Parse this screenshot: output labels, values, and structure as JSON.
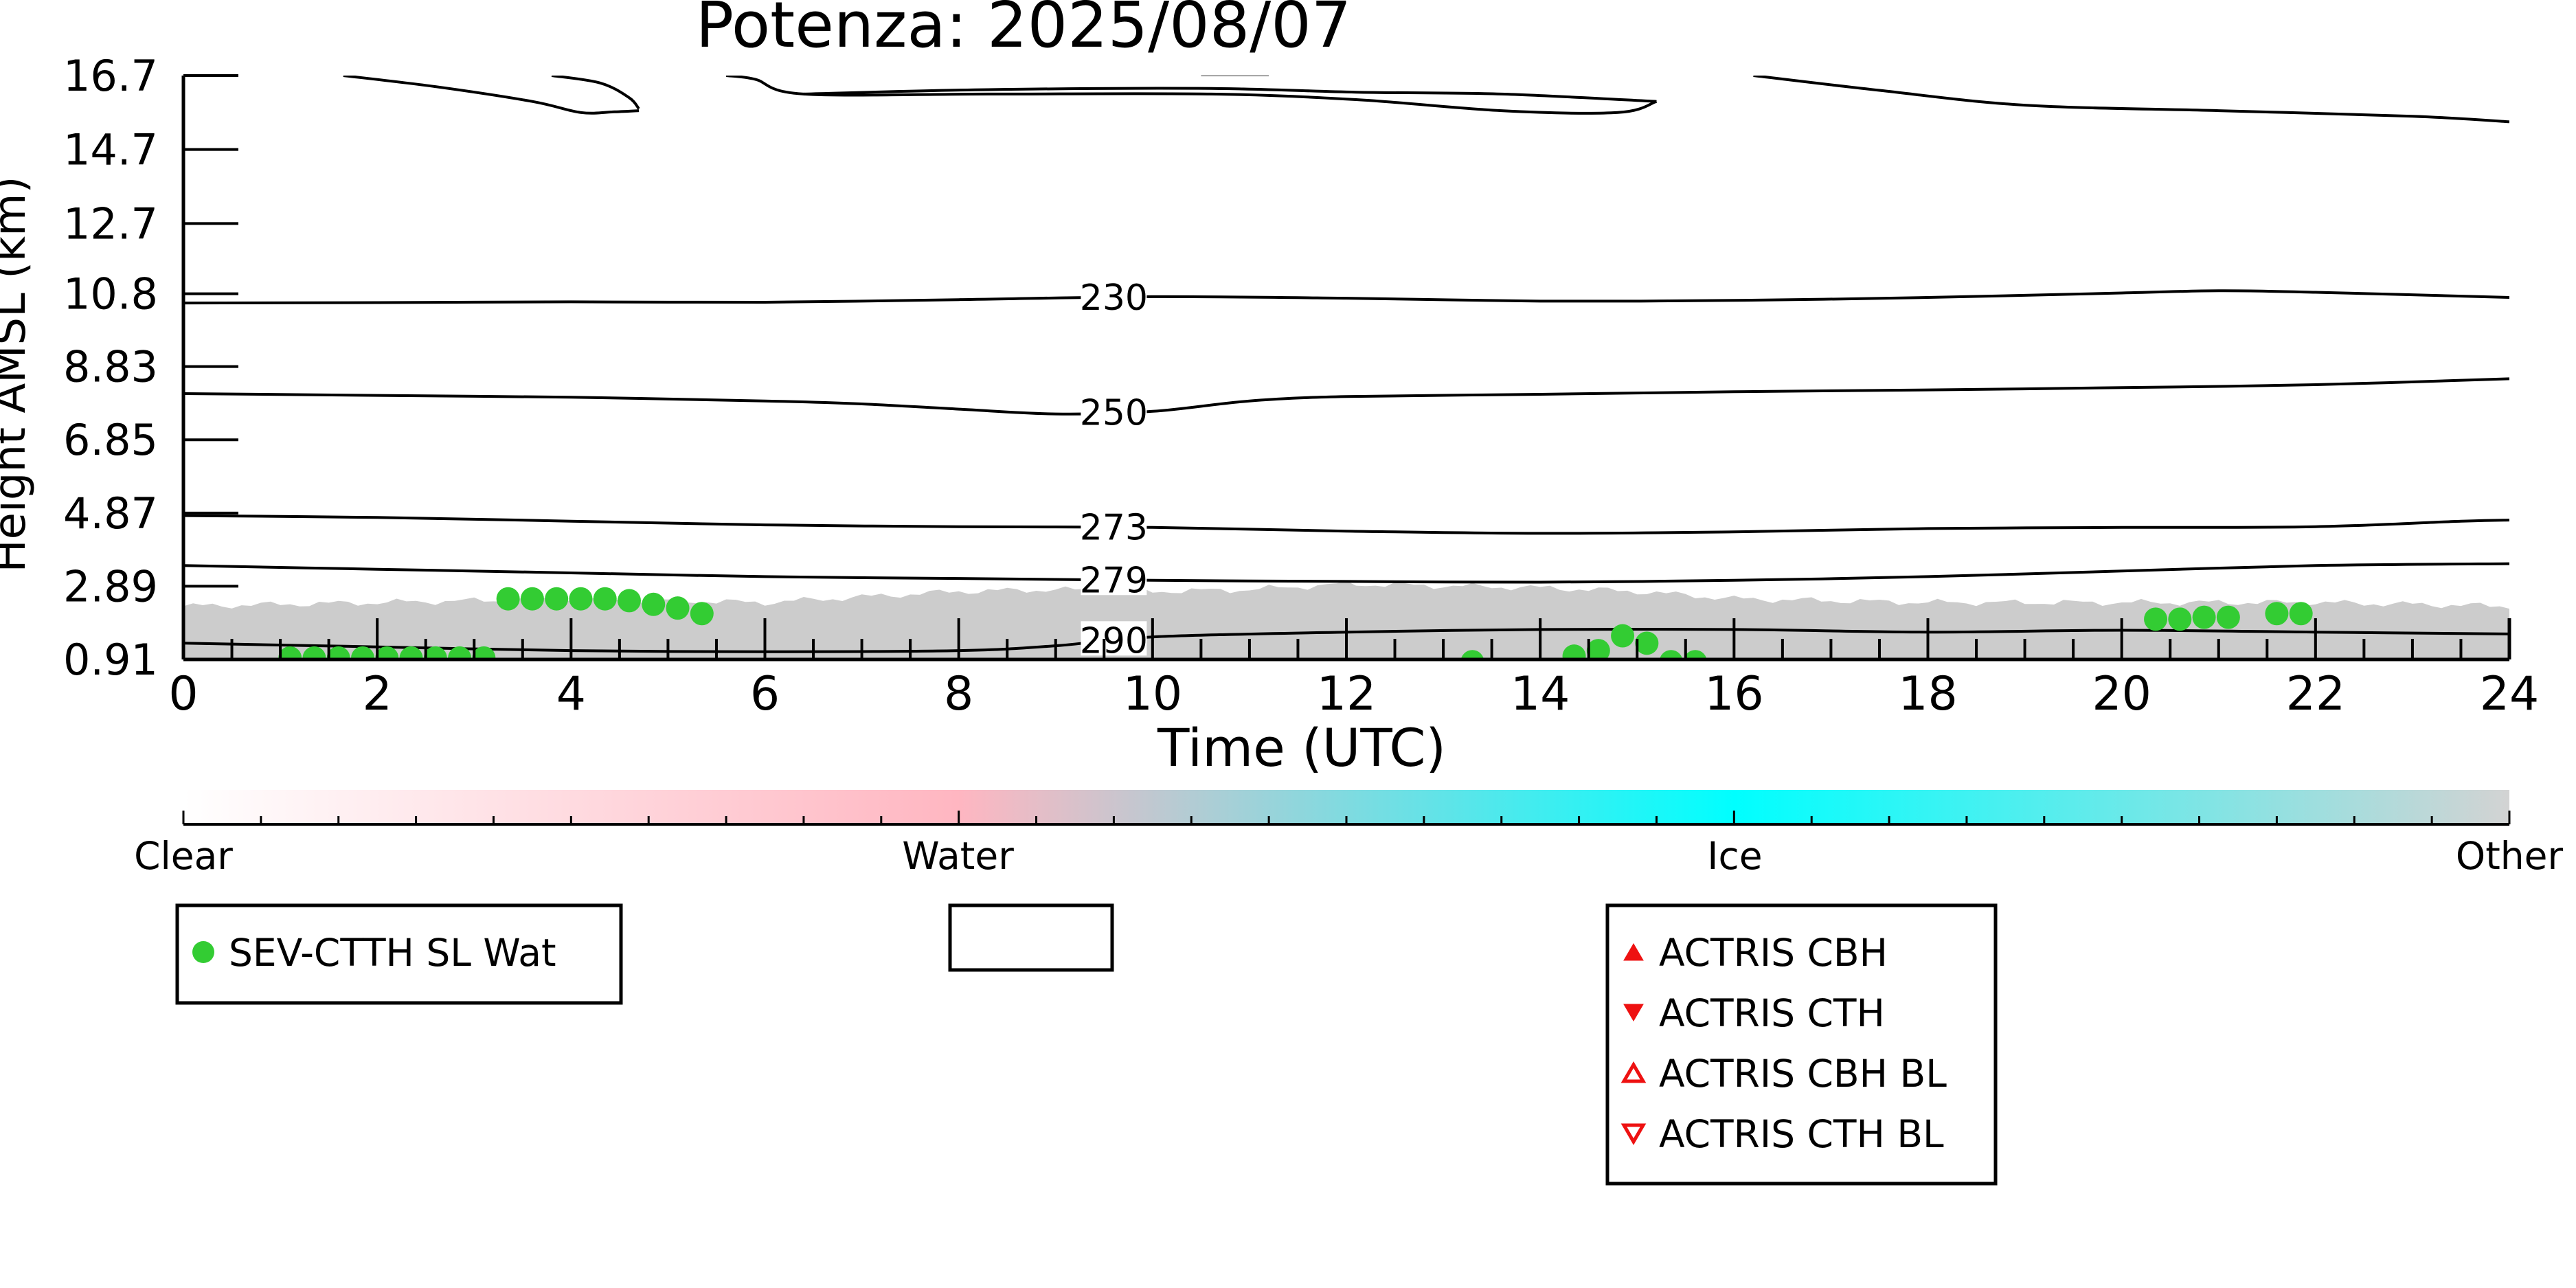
{
  "chart_data": {
    "type": "scatter",
    "title": "Potenza: 2025/08/07",
    "xlabel": "Time (UTC)",
    "ylabel": "Height AMSL (km)",
    "xlim": [
      0,
      24
    ],
    "ylim": [
      0.91,
      16.7
    ],
    "xticks": [
      "0",
      "2",
      "4",
      "6",
      "8",
      "10",
      "12",
      "14",
      "16",
      "18",
      "20",
      "22",
      "24"
    ],
    "yticks": [
      "0.91",
      "2.89",
      "4.87",
      "6.85",
      "8.83",
      "10.8",
      "12.7",
      "14.7",
      "16.7"
    ],
    "ytick_values": [
      0.91,
      2.89,
      4.87,
      6.85,
      8.83,
      10.8,
      12.7,
      14.7,
      16.7
    ],
    "grid": false,
    "colors": {
      "sev_points": "#33cc33",
      "actris": "#ee1111",
      "background_cloud": "#cccccc",
      "contour": "#000000"
    },
    "colorbar": {
      "labels": [
        "Clear",
        "Water",
        "Ice",
        "Other"
      ],
      "positions": [
        0,
        0.333,
        0.667,
        1
      ],
      "colors": [
        "#ffffff",
        "#ffb6c1",
        "#00ffff",
        "#d3d3d3"
      ]
    },
    "isotherms": [
      {
        "label": "230",
        "label_x": 9.6,
        "x": [
          0,
          2,
          4,
          6,
          8,
          10,
          12,
          14,
          16,
          18,
          20,
          21,
          22,
          24
        ],
        "y": [
          10.55,
          10.56,
          10.58,
          10.57,
          10.64,
          10.72,
          10.68,
          10.6,
          10.62,
          10.7,
          10.82,
          10.88,
          10.84,
          10.7
        ]
      },
      {
        "label": "250",
        "label_x": 9.6,
        "x": [
          0,
          2,
          4,
          6,
          7,
          8,
          9,
          10,
          11,
          12,
          14,
          16,
          18,
          20,
          22,
          24
        ],
        "y": [
          8.1,
          8.05,
          8.0,
          7.9,
          7.82,
          7.68,
          7.55,
          7.62,
          7.9,
          8.02,
          8.08,
          8.15,
          8.2,
          8.26,
          8.34,
          8.5
        ]
      },
      {
        "label": "273",
        "label_x": 9.6,
        "x": [
          0,
          2,
          4,
          6,
          8,
          10,
          12,
          14,
          16,
          18,
          20,
          22,
          23.5,
          24
        ],
        "y": [
          4.8,
          4.75,
          4.65,
          4.55,
          4.5,
          4.48,
          4.38,
          4.32,
          4.36,
          4.45,
          4.48,
          4.5,
          4.65,
          4.68
        ]
      },
      {
        "label": "279",
        "label_x": 9.6,
        "x": [
          0,
          2,
          4,
          6,
          8,
          10,
          12,
          14,
          16,
          18,
          20,
          22,
          24
        ],
        "y": [
          3.45,
          3.35,
          3.25,
          3.15,
          3.1,
          3.05,
          3.02,
          3.0,
          3.05,
          3.15,
          3.3,
          3.45,
          3.5
        ]
      },
      {
        "label": "290",
        "label_x": 9.6,
        "x": [
          0,
          2,
          4,
          6,
          8,
          9,
          10,
          12,
          14,
          16,
          18,
          20,
          22,
          24
        ],
        "y": [
          1.35,
          1.25,
          1.15,
          1.12,
          1.15,
          1.28,
          1.52,
          1.65,
          1.72,
          1.72,
          1.65,
          1.7,
          1.65,
          1.6
        ]
      }
    ],
    "tropopause": [
      {
        "x": [
          1.65,
          2.6,
          3.6,
          4.1,
          4.45,
          4.7
        ],
        "y": [
          16.7,
          16.4,
          16.0,
          15.7,
          15.72,
          15.75
        ]
      },
      {
        "x": [
          3.8,
          4.3,
          4.6,
          4.7
        ],
        "y": [
          16.7,
          16.5,
          16.1,
          15.8
        ]
      },
      {
        "x": [
          5.6,
          5.9,
          6.4,
          8.3,
          10.6,
          12.1,
          13.6,
          14.8,
          15.2
        ],
        "y": [
          16.7,
          16.6,
          16.2,
          16.2,
          16.2,
          16.05,
          15.75,
          15.7,
          16.0
        ]
      },
      {
        "x": [
          6.4,
          8.3,
          10.6,
          12.1,
          13.6,
          15.2
        ],
        "y": [
          16.2,
          16.32,
          16.35,
          16.25,
          16.2,
          16.0
        ]
      },
      {
        "x": [
          10.5,
          11.2
        ],
        "y": [
          16.72,
          16.72
        ]
      },
      {
        "x": [
          16.2,
          17.5,
          19.0,
          21.0,
          23.0,
          24.0
        ],
        "y": [
          16.7,
          16.3,
          15.9,
          15.75,
          15.6,
          15.45
        ]
      }
    ],
    "series": [
      {
        "name": "SEV-CTTH SL Wat",
        "marker": "circle-filled",
        "color": "#33cc33",
        "x": [
          1.1,
          1.35,
          1.6,
          1.85,
          2.1,
          2.35,
          2.6,
          2.85,
          3.1,
          3.35,
          3.6,
          3.85,
          4.1,
          4.35,
          4.6,
          4.85,
          5.1,
          5.35,
          13.3,
          14.35,
          14.6,
          14.85,
          15.1,
          15.35,
          15.6,
          20.35,
          20.6,
          20.85,
          21.1,
          21.6,
          21.85
        ],
        "y": [
          0.95,
          0.95,
          0.95,
          0.95,
          0.95,
          0.95,
          0.95,
          0.95,
          0.95,
          2.55,
          2.55,
          2.55,
          2.55,
          2.55,
          2.5,
          2.4,
          2.3,
          2.15,
          0.85,
          1.0,
          1.15,
          1.55,
          1.35,
          0.85,
          0.85,
          2.0,
          2.0,
          2.05,
          2.05,
          2.15,
          2.15
        ]
      }
    ],
    "legends": [
      {
        "entries": [
          {
            "label": "SEV-CTTH SL Wat",
            "marker": "circle-filled",
            "color": "#33cc33"
          }
        ]
      },
      {
        "entries": []
      },
      {
        "entries": [
          {
            "label": "ACTRIS CBH",
            "marker": "triangle-up-filled",
            "color": "#ee1111"
          },
          {
            "label": "ACTRIS CTH",
            "marker": "triangle-down-filled",
            "color": "#ee1111"
          },
          {
            "label": "ACTRIS CBH BL",
            "marker": "triangle-up-open",
            "color": "#ee1111"
          },
          {
            "label": "ACTRIS CTH BL",
            "marker": "triangle-down-open",
            "color": "#ee1111"
          }
        ]
      }
    ]
  }
}
